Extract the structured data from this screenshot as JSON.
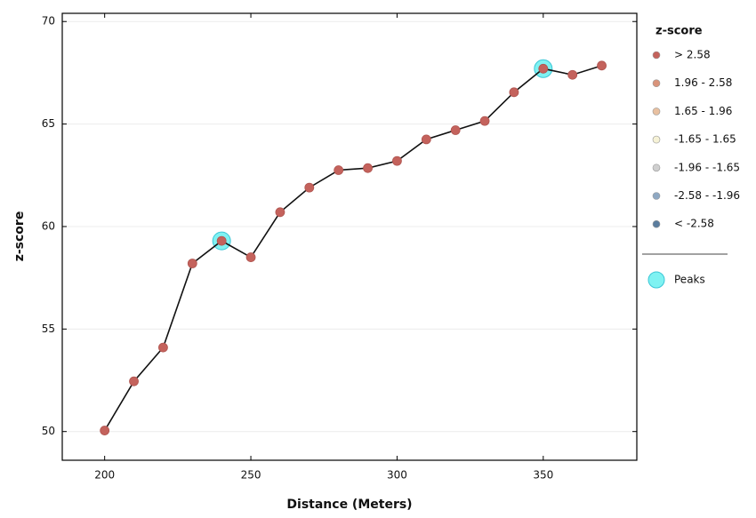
{
  "chart_data": {
    "type": "line",
    "x_label": "Distance (Meters)",
    "y_label": "z-score",
    "x": [
      200,
      210,
      220,
      230,
      240,
      250,
      260,
      270,
      280,
      290,
      300,
      310,
      320,
      330,
      340,
      350,
      360,
      370
    ],
    "series": [
      {
        "color": "#c4625c",
        "values": [
          50.05,
          52.45,
          54.1,
          58.2,
          59.3,
          58.5,
          60.7,
          61.9,
          62.75,
          62.85,
          63.2,
          64.25,
          64.7,
          65.15,
          66.55,
          67.7,
          67.4,
          67.85
        ]
      },
      {
        "name": "Peaks",
        "color": "#7ff2f2",
        "x": [
          240,
          350
        ],
        "values": [
          59.3,
          67.7
        ]
      }
    ],
    "xlim": [
      185.5,
      382
    ],
    "ylim": [
      48.6,
      70.4
    ],
    "xticks": [
      200,
      250,
      300,
      350
    ],
    "yticks": [
      50,
      55,
      60,
      65,
      70
    ],
    "grid": true,
    "legend": {
      "title": "z-score",
      "entries": [
        {
          "label": "> 2.58",
          "color": "#c4625c"
        },
        {
          "label": "1.96 - 2.58",
          "color": "#d9937a"
        },
        {
          "label": "1.65 - 1.96",
          "color": "#e8c0a0"
        },
        {
          "label": "-1.65 - 1.65",
          "color": "#f6f2d6"
        },
        {
          "label": "-1.96 - -1.65",
          "color": "#cfcfcf"
        },
        {
          "label": "-2.58 - -1.96",
          "color": "#8ea8c2"
        },
        {
          "label": "< -2.58",
          "color": "#5b7d9e"
        }
      ]
    }
  }
}
